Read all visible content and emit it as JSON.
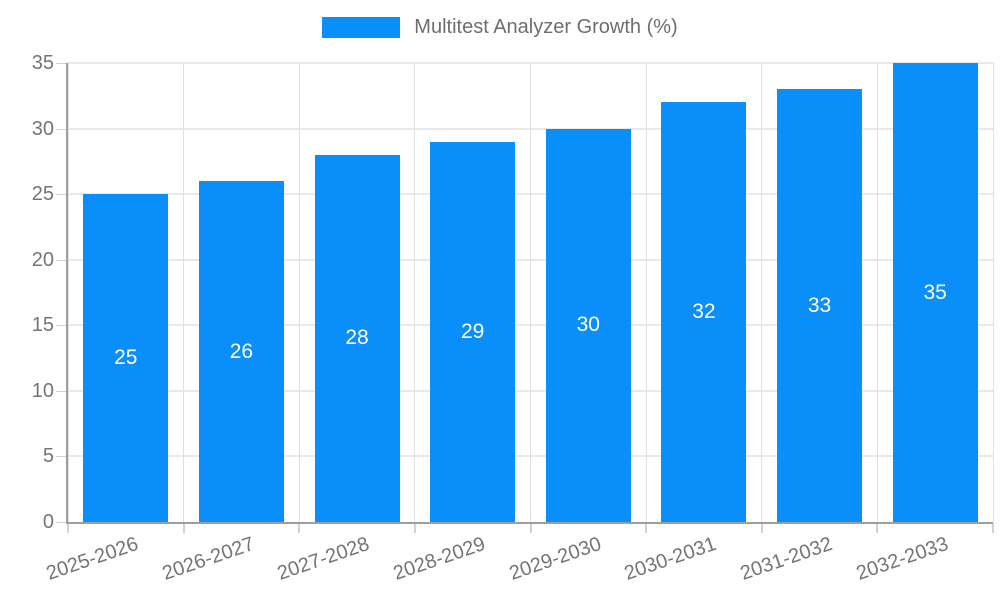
{
  "chart_data": {
    "type": "bar",
    "title": "Multitest Analyzer Growth (%)",
    "categories": [
      "2025-2026",
      "2026-2027",
      "2027-2028",
      "2028-2029",
      "2029-2030",
      "2030-2031",
      "2031-2032",
      "2032-2033"
    ],
    "values": [
      25,
      26,
      28,
      29,
      30,
      32,
      33,
      35
    ],
    "series": [
      {
        "name": "Multitest Analyzer Growth (%)",
        "values": [
          25,
          26,
          28,
          29,
          30,
          32,
          33,
          35
        ]
      }
    ],
    "xlabel": "",
    "ylabel": "",
    "ylim": [
      0,
      35
    ],
    "yticks": [
      0,
      5,
      10,
      15,
      20,
      25,
      30,
      35
    ],
    "grid": true,
    "legend_position": "top-center",
    "bar_value_labels_shown": true,
    "colors": {
      "bar": "#0a8ef9",
      "value_label": "#ffffff",
      "tick_label": "#757575",
      "legend_text": "#6e6e6e",
      "gridline": "#e9e9e9",
      "vertical_gridline": "#e0e0e0",
      "tick_mark": "#d2d2d2",
      "axis_line": "#9e9e9e",
      "background": "#ffffff"
    }
  }
}
